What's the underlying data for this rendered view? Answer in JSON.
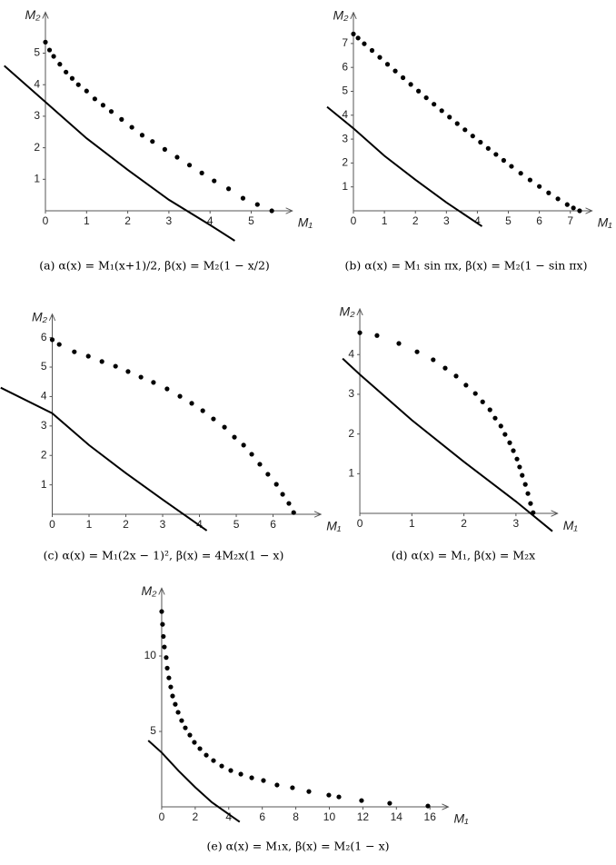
{
  "chart_data": [
    {
      "type": "scatter",
      "caption": "(a) α(x) = M₁(x+1)/2, β(x) = M₂(1 − x/2)",
      "xlabel": "M₁",
      "ylabel": "M₂",
      "xlim": [
        -1,
        6
      ],
      "ylim": [
        -1.1,
        6.3
      ],
      "xticks": [
        0,
        1,
        2,
        3,
        4,
        5
      ],
      "yticks": [
        1,
        2,
        3,
        4,
        5
      ],
      "color": "#000000",
      "points": {
        "x": [
          0,
          0.1,
          0.2,
          0.35,
          0.5,
          0.65,
          0.8,
          1.0,
          1.2,
          1.4,
          1.6,
          1.85,
          2.1,
          2.35,
          2.6,
          2.9,
          3.2,
          3.5,
          3.8,
          4.1,
          4.45,
          4.8,
          5.15,
          5.5
        ],
        "y": [
          5.35,
          5.1,
          4.9,
          4.65,
          4.4,
          4.2,
          4.0,
          3.8,
          3.55,
          3.35,
          3.15,
          2.9,
          2.65,
          2.4,
          2.2,
          1.95,
          1.7,
          1.45,
          1.2,
          0.95,
          0.7,
          0.4,
          0.2,
          0
        ]
      },
      "line": {
        "x": [
          -1,
          0,
          1,
          2,
          3,
          4,
          4.6
        ],
        "y": [
          4.6,
          3.45,
          2.3,
          1.3,
          0.35,
          -0.45,
          -0.95
        ]
      }
    },
    {
      "type": "scatter",
      "caption": "(b) α(x) = M₁ sin πx, β(x) = M₂(1 − sin πx)",
      "xlabel": "M₁",
      "ylabel": "M₂",
      "xlim": [
        -1,
        7.7
      ],
      "ylim": [
        -0.7,
        8.3
      ],
      "xticks": [
        0,
        1,
        2,
        3,
        4,
        5,
        6,
        7
      ],
      "yticks": [
        1,
        2,
        3,
        4,
        5,
        6,
        7
      ],
      "color": "#000000",
      "points": {
        "x": [
          0,
          0.15,
          0.35,
          0.6,
          0.85,
          1.1,
          1.35,
          1.6,
          1.85,
          2.1,
          2.35,
          2.6,
          2.85,
          3.1,
          3.35,
          3.6,
          3.85,
          4.1,
          4.35,
          4.6,
          4.85,
          5.1,
          5.4,
          5.7,
          6.0,
          6.3,
          6.6,
          6.9,
          7.1,
          7.3
        ],
        "y": [
          7.4,
          7.23,
          6.99,
          6.71,
          6.42,
          6.13,
          5.85,
          5.57,
          5.29,
          5.01,
          4.73,
          4.46,
          4.19,
          3.92,
          3.65,
          3.39,
          3.13,
          2.87,
          2.61,
          2.36,
          2.11,
          1.86,
          1.57,
          1.29,
          1.02,
          0.75,
          0.5,
          0.26,
          0.12,
          0
        ]
      },
      "line": {
        "x": [
          -0.85,
          0,
          1,
          2,
          3,
          4.15
        ],
        "y": [
          4.35,
          3.45,
          2.3,
          1.3,
          0.35,
          -0.65
        ]
      }
    },
    {
      "type": "scatter",
      "caption": "(c) α(x) = M₁(2x − 1)², β(x) = 4M₂x(1 − x)",
      "xlabel": "M₁",
      "ylabel": "M₂",
      "xlim": [
        -1.4,
        7.3
      ],
      "ylim": [
        -1.4,
        6.8
      ],
      "xticks": [
        0,
        1,
        2,
        3,
        4,
        5,
        6
      ],
      "yticks": [
        1,
        2,
        3,
        4,
        5,
        6
      ],
      "color": "#000000",
      "points": {
        "x": [
          0,
          0.19,
          0.6,
          0.98,
          1.35,
          1.72,
          2.06,
          2.41,
          2.75,
          3.12,
          3.47,
          3.79,
          4.09,
          4.38,
          4.68,
          4.95,
          5.2,
          5.42,
          5.64,
          5.86,
          6.09,
          6.26,
          6.43,
          6.56
        ],
        "y": [
          5.93,
          5.77,
          5.52,
          5.37,
          5.19,
          5.03,
          4.85,
          4.66,
          4.48,
          4.26,
          4.01,
          3.77,
          3.52,
          3.24,
          2.96,
          2.62,
          2.35,
          2.04,
          1.7,
          1.36,
          1.02,
          0.68,
          0.37,
          0.06
        ]
      },
      "line": {
        "x": [
          -1.4,
          0,
          1,
          2,
          3,
          4.2
        ],
        "y": [
          4.3,
          3.43,
          2.35,
          1.4,
          0.5,
          -0.55
        ]
      }
    },
    {
      "type": "scatter",
      "caption": "(d) α(x) = M₁, β(x) = M₂x",
      "xlabel": "M₁",
      "ylabel": "M₂",
      "xlim": [
        -0.35,
        3.8
      ],
      "ylim": [
        -0.5,
        5.15
      ],
      "xticks": [
        0,
        1,
        2,
        3
      ],
      "yticks": [
        1,
        2,
        3,
        4
      ],
      "color": "#000000",
      "points": {
        "x": [
          0,
          0.33,
          0.75,
          1.1,
          1.41,
          1.64,
          1.85,
          2.04,
          2.22,
          2.36,
          2.5,
          2.6,
          2.71,
          2.79,
          2.88,
          2.95,
          3.02,
          3.07,
          3.12,
          3.18,
          3.23,
          3.28,
          3.33
        ],
        "y": [
          4.55,
          4.48,
          4.28,
          4.07,
          3.87,
          3.66,
          3.46,
          3.23,
          3.02,
          2.81,
          2.61,
          2.4,
          2.2,
          1.99,
          1.78,
          1.58,
          1.37,
          1.17,
          0.96,
          0.73,
          0.5,
          0.25,
          0.02
        ]
      },
      "line": {
        "x": [
          -0.33,
          0,
          1,
          2,
          3,
          3.7
        ],
        "y": [
          3.9,
          3.5,
          2.35,
          1.3,
          0.3,
          -0.45
        ]
      }
    },
    {
      "type": "scatter",
      "caption": "(e) α(x) = M₁x, β(x) = M₂(1 − x)",
      "xlabel": "M₁",
      "ylabel": "M₂",
      "xlim": [
        -0.8,
        17.1
      ],
      "ylim": [
        -1.1,
        14.5
      ],
      "xticks": [
        0,
        2,
        4,
        6,
        8,
        10,
        12,
        14,
        16
      ],
      "yticks": [
        5,
        10
      ],
      "color": "#000000",
      "points": {
        "x": [
          0,
          0.05,
          0.1,
          0.16,
          0.27,
          0.33,
          0.43,
          0.54,
          0.65,
          0.81,
          0.98,
          1.19,
          1.41,
          1.68,
          1.95,
          2.28,
          2.66,
          3.09,
          3.58,
          4.12,
          4.72,
          5.37,
          6.07,
          6.88,
          7.8,
          8.78,
          9.97,
          10.57,
          11.92,
          13.6,
          15.88
        ],
        "y": [
          12.95,
          12.1,
          11.3,
          10.6,
          9.9,
          9.2,
          8.55,
          7.95,
          7.35,
          6.8,
          6.27,
          5.72,
          5.24,
          4.76,
          4.28,
          3.86,
          3.43,
          3.07,
          2.71,
          2.41,
          2.17,
          1.93,
          1.75,
          1.45,
          1.27,
          1.02,
          0.78,
          0.66,
          0.42,
          0.24,
          0.06
        ]
      },
      "line": {
        "x": [
          -0.8,
          0,
          1,
          2,
          3,
          4.65
        ],
        "y": [
          4.4,
          3.6,
          2.4,
          1.3,
          0.3,
          -1.0
        ]
      }
    }
  ]
}
